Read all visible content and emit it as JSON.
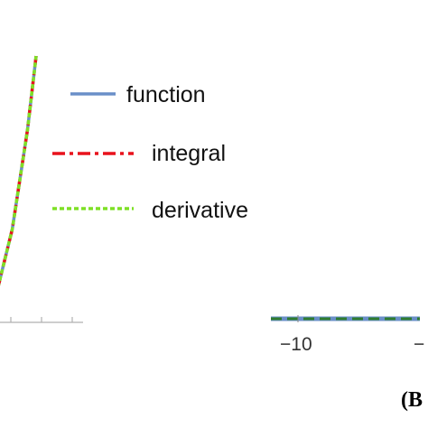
{
  "chart_data": [
    {
      "type": "line",
      "series": [
        {
          "name": "function",
          "color": "#6a8fc8",
          "dash": "solid",
          "x": [
            0.0,
            0.7,
            1.4,
            2.1,
            2.5
          ],
          "y": [
            0.0,
            0.5,
            2.0,
            4.4,
            6.2
          ]
        },
        {
          "name": "integral",
          "color": "#e8121c",
          "dash": "dot-dash",
          "x": [
            0.0,
            0.7,
            1.4,
            2.1,
            2.5
          ],
          "y": [
            0.0,
            0.5,
            2.0,
            4.4,
            6.2
          ]
        },
        {
          "name": "derivative",
          "color": "#7ee026",
          "dash": "dotted",
          "x": [
            0.0,
            0.7,
            1.4,
            2.1,
            2.5
          ],
          "y": [
            0.0,
            0.5,
            2.0,
            4.4,
            6.2
          ]
        }
      ],
      "legend": {
        "position": "top-right",
        "entries": [
          "function",
          "integral",
          "derivative"
        ]
      },
      "xlim": [
        0,
        10
      ],
      "ylim": [
        0,
        8
      ]
    },
    {
      "type": "line",
      "panel_tag": "(B",
      "x_tick_labels": [
        "−10",
        "−"
      ],
      "xlim": [
        -10,
        -4
      ],
      "ylim": [
        -1,
        1
      ],
      "series": [
        {
          "name": "",
          "color": "#6a8fc8",
          "dash": "solid",
          "x": [
            -11,
            -5.5
          ],
          "y": [
            0,
            0
          ]
        },
        {
          "name": "",
          "color": "#2f7d2f",
          "dash": "dashed",
          "x": [
            -11,
            -5.5
          ],
          "y": [
            0,
            0
          ]
        }
      ]
    }
  ]
}
